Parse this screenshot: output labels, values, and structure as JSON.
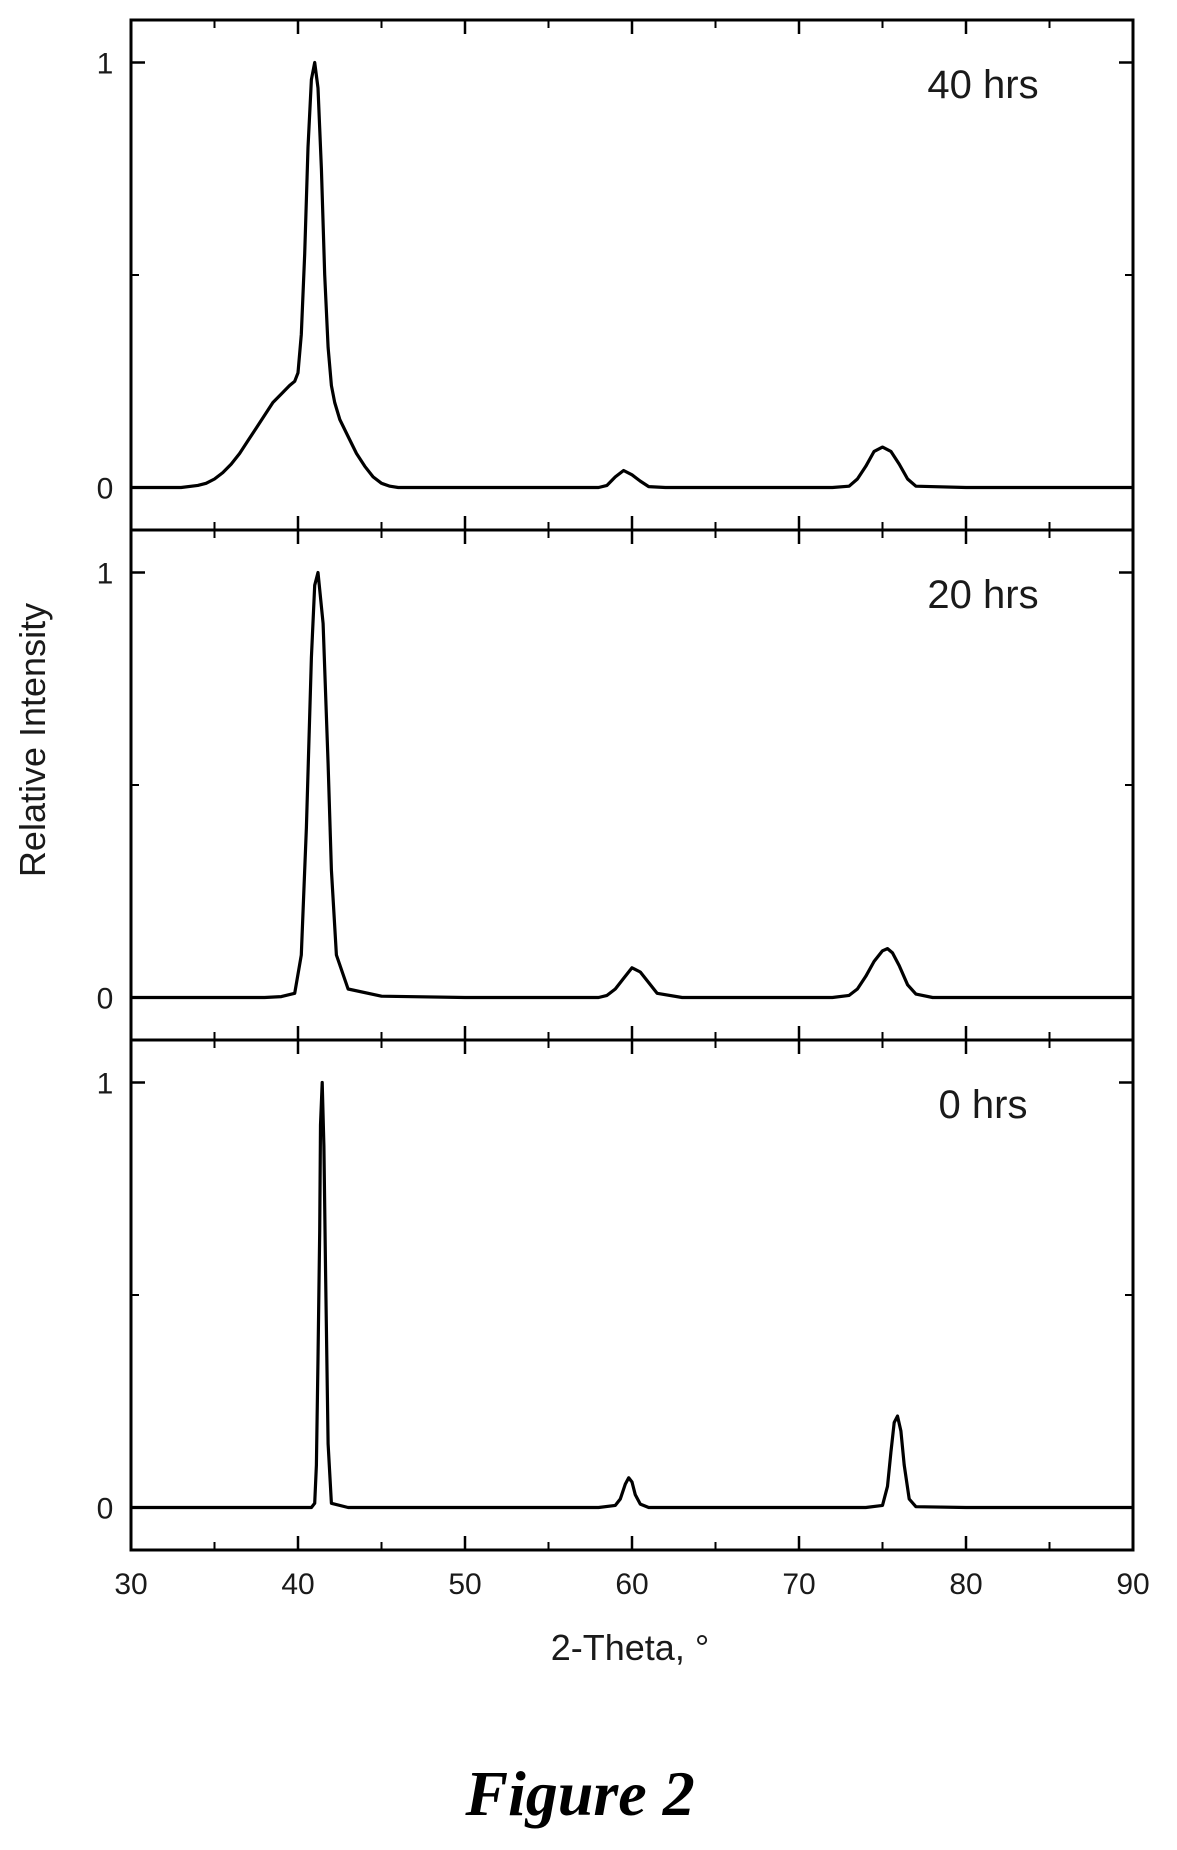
{
  "figure_caption": "Figure 2",
  "chart_data": {
    "type": "line",
    "layout": "stacked-panels",
    "xlabel": "2-Theta, °",
    "ylabel": "Relative Intensity",
    "xlim": [
      30,
      90
    ],
    "x_ticks": [
      30,
      40,
      50,
      60,
      70,
      80,
      90
    ],
    "x_tick_labels": [
      "30",
      "40",
      "50",
      "60",
      "70",
      "80",
      "90"
    ],
    "y_tick_labels": [
      "0",
      "1"
    ],
    "grid": false,
    "line_color": "#000000",
    "panels": [
      {
        "label": "40 hrs",
        "ylim": [
          -0.1,
          1.1
        ],
        "y_ticks": [
          0,
          1
        ],
        "series": [
          {
            "x": [
              30,
              32,
              33,
              34,
              34.5,
              35,
              35.5,
              36,
              36.5,
              37,
              37.5,
              38,
              38.5,
              39,
              39.5,
              39.8,
              40,
              40.2,
              40.4,
              40.6,
              40.8,
              41,
              41.2,
              41.4,
              41.6,
              41.8,
              42,
              42.2,
              42.5,
              43,
              43.5,
              44,
              44.5,
              45,
              45.5,
              46,
              50,
              55,
              58,
              58.5,
              59,
              59.5,
              60,
              60.5,
              61,
              62,
              65,
              70,
              72,
              73,
              73.5,
              74,
              74.5,
              75,
              75.5,
              76,
              76.5,
              77,
              80,
              85,
              90
            ],
            "y": [
              0,
              0,
              0,
              0.005,
              0.01,
              0.02,
              0.035,
              0.055,
              0.08,
              0.11,
              0.14,
              0.17,
              0.2,
              0.22,
              0.24,
              0.25,
              0.27,
              0.36,
              0.55,
              0.8,
              0.96,
              1,
              0.94,
              0.75,
              0.5,
              0.33,
              0.24,
              0.2,
              0.16,
              0.12,
              0.08,
              0.05,
              0.025,
              0.01,
              0.003,
              0,
              0,
              0,
              0,
              0.005,
              0.025,
              0.04,
              0.03,
              0.015,
              0.002,
              0,
              0,
              0,
              0,
              0.003,
              0.02,
              0.05,
              0.085,
              0.095,
              0.085,
              0.055,
              0.02,
              0.003,
              0,
              0,
              0
            ]
          }
        ]
      },
      {
        "label": "20 hrs",
        "ylim": [
          -0.1,
          1.1
        ],
        "y_ticks": [
          0,
          1
        ],
        "series": [
          {
            "x": [
              30,
              38,
              39,
              39.8,
              40.2,
              40.5,
              40.8,
              41,
              41.2,
              41.5,
              41.8,
              42,
              42.3,
              43,
              45,
              50,
              55,
              58,
              58.5,
              59,
              59.5,
              60,
              60.5,
              61,
              61.5,
              63,
              65,
              70,
              72,
              73,
              73.5,
              74,
              74.5,
              75,
              75.3,
              75.6,
              76,
              76.5,
              77,
              78,
              80,
              85,
              90
            ],
            "y": [
              0,
              0,
              0.002,
              0.01,
              0.1,
              0.4,
              0.8,
              0.97,
              1,
              0.88,
              0.55,
              0.3,
              0.1,
              0.02,
              0.003,
              0,
              0,
              0,
              0.005,
              0.02,
              0.045,
              0.07,
              0.06,
              0.035,
              0.01,
              0,
              0,
              0,
              0,
              0.005,
              0.02,
              0.05,
              0.085,
              0.11,
              0.115,
              0.105,
              0.075,
              0.03,
              0.008,
              0,
              0,
              0,
              0
            ]
          }
        ]
      },
      {
        "label": "0 hrs",
        "ylim": [
          -0.1,
          1.1
        ],
        "y_ticks": [
          0,
          1
        ],
        "series": [
          {
            "x": [
              30,
              40,
              40.8,
              41,
              41.1,
              41.2,
              41.3,
              41.35,
              41.45,
              41.55,
              41.65,
              41.8,
              42,
              43,
              50,
              55,
              58,
              59,
              59.3,
              59.6,
              59.8,
              60,
              60.2,
              60.5,
              61,
              65,
              70,
              74,
              75,
              75.3,
              75.5,
              75.7,
              75.9,
              76.1,
              76.3,
              76.6,
              77,
              80,
              85,
              90
            ],
            "y": [
              0,
              0,
              0,
              0.01,
              0.1,
              0.35,
              0.65,
              0.9,
              1,
              0.85,
              0.55,
              0.15,
              0.01,
              0,
              0,
              0,
              0,
              0.005,
              0.02,
              0.055,
              0.07,
              0.06,
              0.03,
              0.008,
              0,
              0,
              0,
              0,
              0.005,
              0.05,
              0.13,
              0.2,
              0.215,
              0.18,
              0.1,
              0.02,
              0.002,
              0,
              0,
              0
            ]
          }
        ]
      }
    ]
  }
}
